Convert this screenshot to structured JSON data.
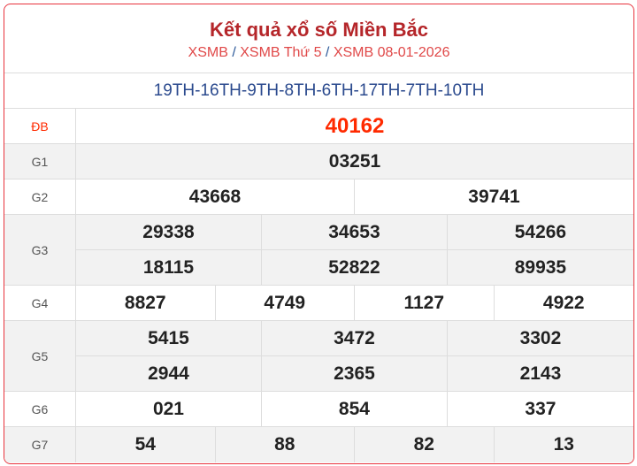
{
  "header": {
    "title": "Kết quả xổ số Miền Bắc",
    "breadcrumb": [
      "XSMB",
      "XSMB Thứ 5",
      "XSMB 08-01-2026"
    ],
    "separator": "/"
  },
  "codes": "19TH-16TH-9TH-8TH-6TH-17TH-7TH-10TH",
  "colors": {
    "border": "#e8323c",
    "title": "#b5262a",
    "special": "#ff2a00",
    "codes": "#2b4a8e"
  },
  "prizes": [
    {
      "label": "ĐB",
      "numbers": [
        "40162"
      ]
    },
    {
      "label": "G1",
      "numbers": [
        "03251"
      ]
    },
    {
      "label": "G2",
      "numbers": [
        "43668",
        "39741"
      ]
    },
    {
      "label": "G3",
      "numbers": [
        "29338",
        "34653",
        "54266",
        "18115",
        "52822",
        "89935"
      ]
    },
    {
      "label": "G4",
      "numbers": [
        "8827",
        "4749",
        "1127",
        "4922"
      ]
    },
    {
      "label": "G5",
      "numbers": [
        "5415",
        "3472",
        "3302",
        "2944",
        "2365",
        "2143"
      ]
    },
    {
      "label": "G6",
      "numbers": [
        "021",
        "854",
        "337"
      ]
    },
    {
      "label": "G7",
      "numbers": [
        "54",
        "88",
        "82",
        "13"
      ]
    }
  ]
}
